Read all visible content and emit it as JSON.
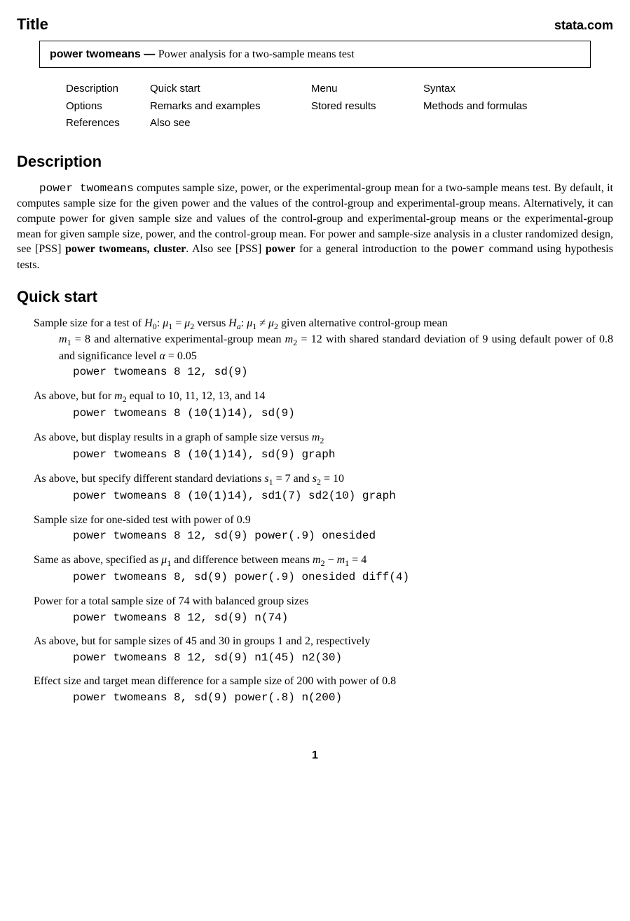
{
  "header": {
    "title": "Title",
    "brand": "stata.com"
  },
  "title_box": {
    "command": "power twomeans",
    "separator": " — ",
    "subtitle": "Power analysis for a two-sample means test"
  },
  "toc": {
    "rows": [
      [
        "Description",
        "Quick start",
        "Menu",
        "Syntax"
      ],
      [
        "Options",
        "Remarks and examples",
        "Stored results",
        "Methods and formulas"
      ],
      [
        "References",
        "Also see",
        "",
        ""
      ]
    ]
  },
  "sections": {
    "description": {
      "heading": "Description",
      "lead_cmd": "power twomeans",
      "body_after_cmd": " computes sample size, power, or the experimental-group mean for a two-sample means test. By default, it computes sample size for the given power and the values of the control-group and experimental-group means. Alternatively, it can compute power for given sample size and values of the control-group and experimental-group means or the experimental-group mean for given sample size, power, and the control-group mean. For power and sample-size analysis in a cluster randomized design, see ",
      "pss1": "[PSS]",
      "cmd2": " power twomeans, cluster",
      "mid": ". Also see ",
      "pss2": "[PSS]",
      "cmd3": " power",
      "tail_a": " for a general introduction to the ",
      "cmd4": "power",
      "tail_b": " command using hypothesis tests."
    },
    "quickstart": {
      "heading": "Quick start",
      "items": [
        {
          "line1_a": "Sample size for a test of ",
          "line1_b": " given alternative control-group mean ",
          "line2": " with shared standard deviation of 9 using default power of 0.8 and significance level ",
          "m1eq": " = 8",
          "line1_c": " and alternative experimental-group mean ",
          "m2eq": " = 12",
          "alpha": " = 0.05",
          "code": "power twomeans 8 12, sd(9)"
        },
        {
          "desc_a": "As above, but for ",
          "desc_b": " equal to 10, 11, 12, 13, and 14",
          "code": "power twomeans 8 (10(1)14), sd(9)"
        },
        {
          "desc_a": "As above, but display results in a graph of sample size versus ",
          "code": "power twomeans 8 (10(1)14), sd(9) graph"
        },
        {
          "desc_a": "As above, but specify different standard deviations ",
          "s1": " = 7",
          "desc_mid": " and ",
          "s2": " = 10",
          "code": "power twomeans 8 (10(1)14), sd1(7) sd2(10) graph"
        },
        {
          "desc": "Sample size for one-sided test with power of 0.9",
          "code": "power twomeans 8 12, sd(9) power(.9) onesided"
        },
        {
          "desc_a": "Same as above, specified as ",
          "desc_b": " and difference between means ",
          "diff": " = 4",
          "code": "power twomeans 8, sd(9) power(.9) onesided diff(4)"
        },
        {
          "desc": "Power for a total sample size of 74 with balanced group sizes",
          "code": "power twomeans 8 12, sd(9) n(74)"
        },
        {
          "desc": "As above, but for sample sizes of 45 and 30 in groups 1 and 2, respectively",
          "code": "power twomeans 8 12, sd(9) n1(45) n2(30)"
        },
        {
          "desc": "Effect size and target mean difference for a sample size of 200 with power of 0.8",
          "code": "power twomeans 8, sd(9) power(.8) n(200)"
        }
      ]
    }
  },
  "page_number": "1"
}
